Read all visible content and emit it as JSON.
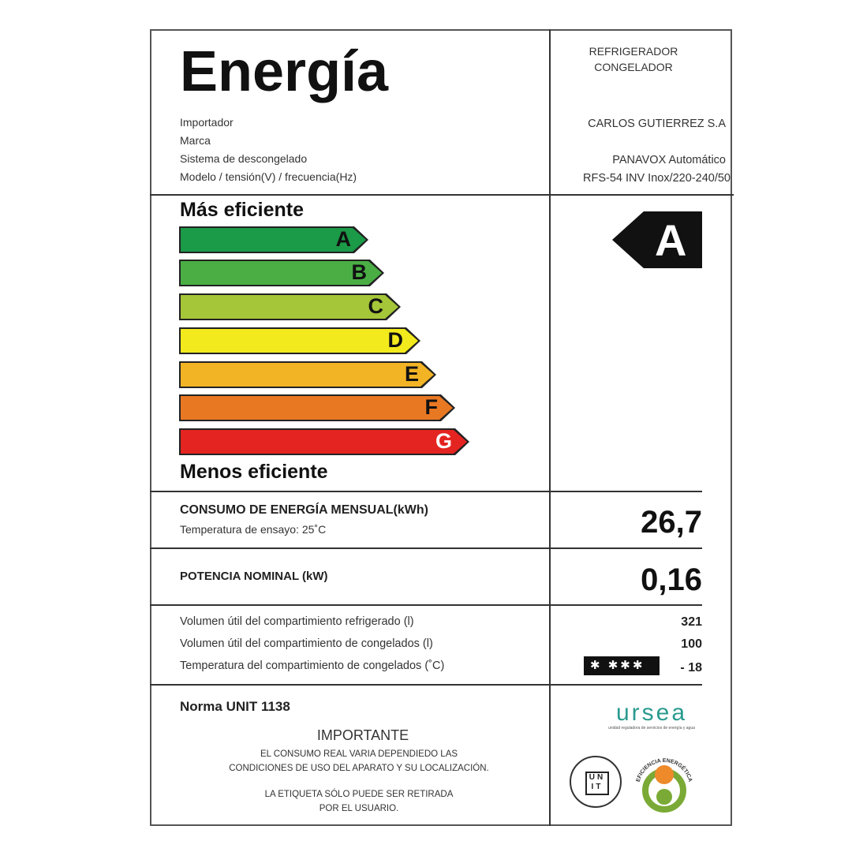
{
  "title": "Energía",
  "fields": {
    "labels": [
      "Importador",
      "Marca",
      "Sistema de descongelado",
      "Modelo / tensión(V) / frecuencia(Hz)"
    ]
  },
  "product": {
    "type_line1": "REFRIGERADOR",
    "type_line2": "CONGELADOR",
    "importer": "CARLOS GUTIERREZ S.A",
    "brand_defrost": "PANAVOX Automático",
    "model": "RFS-54 INV Inox/220-240/50"
  },
  "scale": {
    "top_label": "Más eficiente",
    "bottom_label": "Menos eficiente",
    "classes": [
      {
        "letter": "A",
        "color": "#1b9a48"
      },
      {
        "letter": "B",
        "color": "#4aae45"
      },
      {
        "letter": "C",
        "color": "#a5c638"
      },
      {
        "letter": "D",
        "color": "#f2ea1c"
      },
      {
        "letter": "E",
        "color": "#f2b325"
      },
      {
        "letter": "F",
        "color": "#e97823"
      },
      {
        "letter": "G",
        "color": "#e42421"
      }
    ]
  },
  "rating": "A",
  "consumption": {
    "label": "CONSUMO DE ENERGÍA MENSUAL(kWh)",
    "sub": "Temperatura de ensayo: 25˚C",
    "value": "26,7"
  },
  "power": {
    "label": "POTENCIA NOMINAL (kW)",
    "value": "0,16"
  },
  "volumes": [
    {
      "label": "Volumen útil del compartimiento refrigerado (l)",
      "value": "321"
    },
    {
      "label": "Volumen útil del compartimiento de congelados (l)",
      "value": "100"
    },
    {
      "label": "Temperatura del compartimiento de congelados (˚C)",
      "value": "- 18"
    }
  ],
  "freezer_stars": "✱ ✱✱✱",
  "footer": {
    "norma": "Norma UNIT 1138",
    "importante": "IMPORTANTE",
    "line1": "EL CONSUMO REAL VARIA DEPENDIEDO LAS",
    "line2": "CONDICIONES DE USO DEL APARATO Y SU LOCALIZACIÓN.",
    "line3": "LA ETIQUETA SÓLO PUEDE SER RETIRADA",
    "line4": "POR EL USUARIO."
  },
  "logos": {
    "ursea": "ursea",
    "ursea_sub": "unidad reguladora de servicios de energía y agua",
    "unit": "UNIT",
    "eficiencia": "EFICIENCIA ENERGÉTICA"
  }
}
